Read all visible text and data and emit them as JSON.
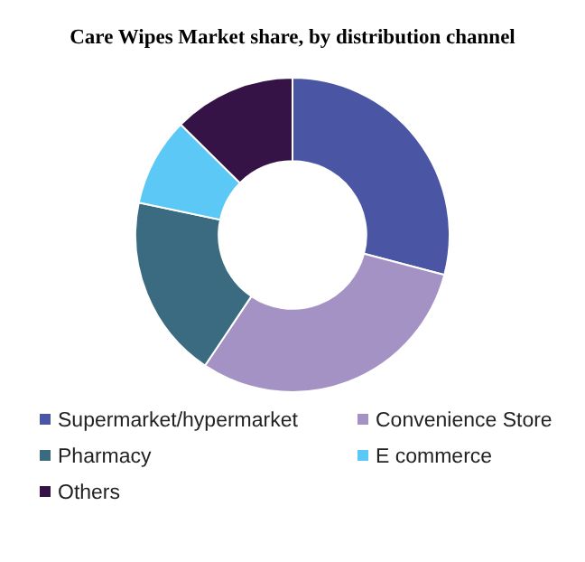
{
  "chart_data": {
    "type": "donut",
    "title": "Care Wipes Market share, by distribution channel",
    "categories": [
      "Supermarket/hypermarket",
      "Convenience Store",
      "Pharmacy",
      "E commerce",
      "Others"
    ],
    "values": [
      29.1,
      30.3,
      18.9,
      9.1,
      12.6
    ],
    "colors": [
      "#4a56a4",
      "#a592c4",
      "#3a6b80",
      "#5bc8f5",
      "#361346"
    ],
    "legend": "bottom"
  }
}
